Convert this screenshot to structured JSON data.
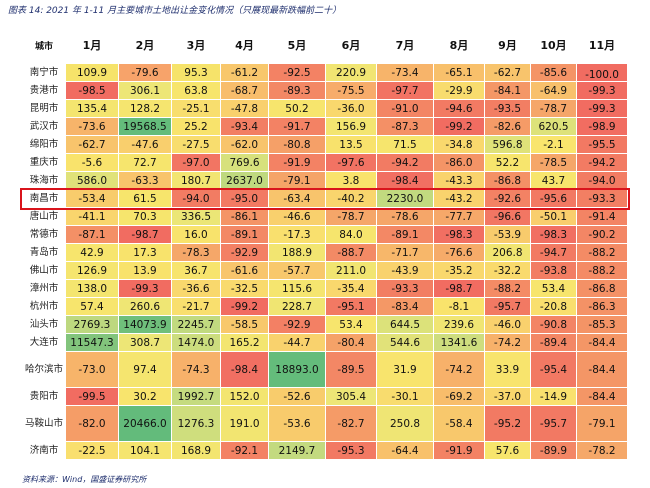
{
  "caption": "图表 14:  2021 年 1-11 月主要城市土地出让金变化情况（只展现最新跌幅前二十）",
  "source": "资料来源：Wind，国盛证券研究所",
  "chart_data": {
    "type": "table",
    "columns": [
      "城市",
      "1月",
      "2月",
      "3月",
      "4月",
      "5月",
      "6月",
      "7月",
      "8月",
      "9月",
      "10月",
      "11月"
    ],
    "highlighted_row": "南昌市",
    "rows": [
      {
        "city": "南宁市",
        "values": [
          "109.9",
          "-79.6",
          "95.3",
          "-61.2",
          "-92.5",
          "220.9",
          "-73.4",
          "-65.1",
          "-62.7",
          "-85.6",
          "-100.0"
        ],
        "colors": [
          "#f6e36a",
          "#f7a36a",
          "#f6e36a",
          "#f8c76c",
          "#f38264",
          "#f1e572",
          "#f7b46a",
          "#f8c06b",
          "#f8c46c",
          "#f49466",
          "#f16c61"
        ]
      },
      {
        "city": "贵港市",
        "values": [
          "-98.5",
          "306.1",
          "63.8",
          "-68.7",
          "-89.3",
          "-75.5",
          "-97.7",
          "-29.9",
          "-84.1",
          "-64.9",
          "-99.3"
        ],
        "colors": [
          "#f16c61",
          "#ede676",
          "#f7e56c",
          "#f8bd6b",
          "#f38865",
          "#f7ac6a",
          "#f27363",
          "#f8dc6e",
          "#f49766",
          "#f8c06b",
          "#f16c61"
        ]
      },
      {
        "city": "昆明市",
        "values": [
          "135.4",
          "128.2",
          "-25.1",
          "-47.8",
          "50.2",
          "-36.0",
          "-91.0",
          "-94.6",
          "-93.5",
          "-78.7",
          "-99.3"
        ],
        "colors": [
          "#f4e56f",
          "#f5e56f",
          "#f8de6e",
          "#f9d06d",
          "#f7e56d",
          "#f9d86d",
          "#f38564",
          "#f27a63",
          "#f27e63",
          "#f5a669",
          "#f16c61"
        ]
      },
      {
        "city": "武汉市",
        "values": [
          "-73.6",
          "19568.5",
          "25.2",
          "-93.4",
          "-91.7",
          "156.9",
          "-87.3",
          "-99.2",
          "-82.6",
          "620.5",
          "-98.9"
        ],
        "colors": [
          "#f7b46a",
          "#64bc7b",
          "#f8e36c",
          "#f27e63",
          "#f38264",
          "#f3e570",
          "#f49066",
          "#f16c61",
          "#f59b67",
          "#dde27a",
          "#f16d61"
        ]
      },
      {
        "city": "绵阳市",
        "values": [
          "-62.7",
          "-47.6",
          "-27.5",
          "-62.0",
          "-80.8",
          "13.5",
          "71.5",
          "-34.8",
          "596.8",
          "-2.1",
          "-95.5"
        ],
        "colors": [
          "#f8c46c",
          "#f9cf6d",
          "#f8dd6e",
          "#f8c46c",
          "#f5a068",
          "#f8e26c",
          "#f6e56d",
          "#f9d86d",
          "#dfe279",
          "#f9e56d",
          "#f27963"
        ]
      },
      {
        "city": "重庆市",
        "values": [
          "-5.6",
          "72.7",
          "-97.0",
          "769.6",
          "-91.9",
          "-97.6",
          "-94.2",
          "-86.0",
          "52.2",
          "-78.5",
          "-94.2"
        ],
        "colors": [
          "#f9e36c",
          "#f6e56d",
          "#f27563",
          "#d7e17c",
          "#f38264",
          "#f27363",
          "#f27b63",
          "#f49466",
          "#f7e56d",
          "#f5a669",
          "#f27b63"
        ]
      },
      {
        "city": "珠海市",
        "values": [
          "586.0",
          "-63.3",
          "180.7",
          "2637.0",
          "-79.1",
          "3.8",
          "-98.4",
          "-43.3",
          "-86.8",
          "43.7",
          "-94.0"
        ],
        "colors": [
          "#e0e279",
          "#f8c46c",
          "#f2e572",
          "#bfd97f",
          "#f5a468",
          "#f9e36c",
          "#f16f62",
          "#f9d36d",
          "#f49166",
          "#f7e56d",
          "#f27c63"
        ]
      },
      {
        "city": "南昌市",
        "values": [
          "-53.4",
          "61.5",
          "-94.0",
          "-95.0",
          "-63.4",
          "-40.2",
          "2230.0",
          "-43.2",
          "-92.6",
          "-95.6",
          "-93.3"
        ],
        "colors": [
          "#f8cc6c",
          "#f7e56c",
          "#f27c63",
          "#f27a63",
          "#f8c46c",
          "#f9d56d",
          "#c2da7f",
          "#f9d36d",
          "#f38264",
          "#f27963",
          "#f27f63"
        ]
      },
      {
        "city": "唐山市",
        "values": [
          "-41.1",
          "70.3",
          "336.5",
          "-86.1",
          "-46.6",
          "-78.7",
          "-78.6",
          "-77.7",
          "-96.6",
          "-50.1",
          "-91.4"
        ],
        "colors": [
          "#f9d56d",
          "#f6e56d",
          "#ebe676",
          "#f49466",
          "#f9d06d",
          "#f5a669",
          "#f5a669",
          "#f6a869",
          "#f27663",
          "#f9ce6d",
          "#f38464"
        ]
      },
      {
        "city": "常德市",
        "values": [
          "-87.1",
          "-98.7",
          "16.0",
          "-89.1",
          "-17.3",
          "84.0",
          "-89.1",
          "-98.3",
          "-53.9",
          "-98.3",
          "-90.2"
        ],
        "colors": [
          "#f49066",
          "#f16c61",
          "#f8e36c",
          "#f38865",
          "#f9e06e",
          "#f6e56d",
          "#f38865",
          "#f16f62",
          "#f8cb6c",
          "#f16f62",
          "#f38665"
        ]
      },
      {
        "city": "青岛市",
        "values": [
          "42.9",
          "17.3",
          "-78.3",
          "-92.9",
          "188.9",
          "-88.7",
          "-71.7",
          "-76.6",
          "206.8",
          "-94.7",
          "-88.2"
        ],
        "colors": [
          "#f7e56d",
          "#f8e36c",
          "#f5a769",
          "#f38064",
          "#f2e571",
          "#f38a65",
          "#f7b76a",
          "#f6ab69",
          "#f1e571",
          "#f27a63",
          "#f48b65"
        ]
      },
      {
        "city": "佛山市",
        "values": [
          "126.9",
          "13.9",
          "36.7",
          "-61.6",
          "-57.7",
          "211.0",
          "-43.9",
          "-35.2",
          "-32.2",
          "-93.8",
          "-88.2"
        ],
        "colors": [
          "#f5e56f",
          "#f8e26c",
          "#f7e46d",
          "#f8c56c",
          "#f8c86c",
          "#f1e571",
          "#f9d26d",
          "#f9d86d",
          "#f9da6d",
          "#f27d63",
          "#f48b65"
        ]
      },
      {
        "city": "漳州市",
        "values": [
          "138.0",
          "-99.3",
          "-36.6",
          "-32.5",
          "115.6",
          "-35.4",
          "-93.3",
          "-98.7",
          "-88.2",
          "53.4",
          "-86.8"
        ],
        "colors": [
          "#f4e56f",
          "#f16c61",
          "#f9d86d",
          "#f9da6d",
          "#f5e56f",
          "#f9d86d",
          "#f27e63",
          "#f16c61",
          "#f48b65",
          "#f7e56d",
          "#f49166"
        ]
      },
      {
        "city": "杭州市",
        "values": [
          "57.4",
          "260.6",
          "-21.7",
          "-99.2",
          "228.7",
          "-95.1",
          "-83.4",
          "-8.1",
          "-95.7",
          "-20.8",
          "-86.3"
        ],
        "colors": [
          "#f7e56d",
          "#efe674",
          "#f9df6e",
          "#f16c61",
          "#f0e572",
          "#f27963",
          "#f49866",
          "#f9e36c",
          "#f27963",
          "#f9df6e",
          "#f49266"
        ]
      },
      {
        "city": "汕头市",
        "values": [
          "2769.3",
          "14073.9",
          "2245.7",
          "-58.5",
          "-92.9",
          "53.4",
          "644.5",
          "239.6",
          "-46.0",
          "-90.8",
          "-85.3"
        ],
        "colors": [
          "#bdd87f",
          "#6fbf7b",
          "#c1da7f",
          "#f8c86c",
          "#f38064",
          "#f7e56d",
          "#dce27a",
          "#f0e573",
          "#f9d16d",
          "#f38465",
          "#f49466"
        ]
      },
      {
        "city": "大连市",
        "values": [
          "11547.3",
          "308.7",
          "1474.0",
          "165.2",
          "-44.7",
          "-80.4",
          "544.6",
          "1341.6",
          "-74.2",
          "-89.4",
          "-84.4"
        ],
        "colors": [
          "#82c47c",
          "#ede676",
          "#ccdd7e",
          "#f3e570",
          "#f9d26d",
          "#f5a268",
          "#e1e279",
          "#cedd7e",
          "#f7b16a",
          "#f38765",
          "#f49666"
        ]
      },
      {
        "city": "哈尔滨市",
        "values": [
          "-73.0",
          "97.4",
          "-74.3",
          "-98.4",
          "18893.0",
          "-89.5",
          "31.9",
          "-74.2",
          "33.9",
          "-95.4",
          "-84.4"
        ],
        "colors": [
          "#f7b46a",
          "#f5e56f",
          "#f7b16a",
          "#f16f62",
          "#64bc7b",
          "#f38765",
          "#f8e46d",
          "#f7b16a",
          "#f8e46d",
          "#f27963",
          "#f49666"
        ]
      },
      {
        "city": "贵阳市",
        "values": [
          "-99.5",
          "30.2",
          "1992.7",
          "152.0",
          "-52.6",
          "305.4",
          "-30.1",
          "-69.2",
          "-37.0",
          "-14.9",
          "-84.4"
        ],
        "colors": [
          "#f16c61",
          "#f8e46d",
          "#c5db7f",
          "#f3e570",
          "#f8cc6c",
          "#ede676",
          "#f8dc6e",
          "#f8bd6b",
          "#f9d76d",
          "#f9e16e",
          "#f49666"
        ]
      },
      {
        "city": "马鞍山市",
        "values": [
          "-82.0",
          "20466.0",
          "1276.3",
          "191.0",
          "-53.6",
          "-82.7",
          "250.8",
          "-58.4",
          "-95.2",
          "-95.7",
          "-79.1"
        ],
        "colors": [
          "#f59d67",
          "#63bb7b",
          "#cfde7d",
          "#f2e571",
          "#f8cb6c",
          "#f59b67",
          "#efe574",
          "#f8c86c",
          "#f27a63",
          "#f27963",
          "#f5a468"
        ]
      },
      {
        "city": "济南市",
        "values": [
          "-22.5",
          "104.1",
          "168.9",
          "-92.1",
          "2149.7",
          "-95.3",
          "-64.4",
          "-91.9",
          "57.6",
          "-89.9",
          "-78.2"
        ],
        "colors": [
          "#f9df6e",
          "#f5e56f",
          "#f3e570",
          "#f38264",
          "#c3da7f",
          "#f27963",
          "#f8c16b",
          "#f38264",
          "#f7e56d",
          "#f38665",
          "#f5a869"
        ]
      }
    ]
  }
}
